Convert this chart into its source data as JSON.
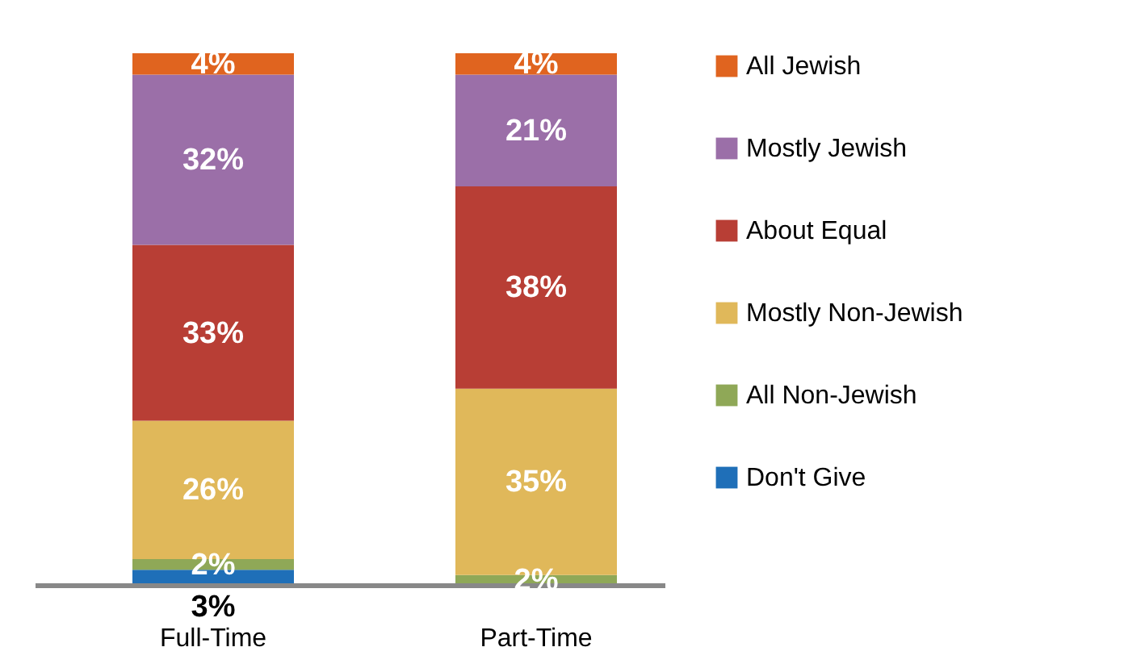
{
  "chart_data": {
    "type": "bar",
    "stacked": true,
    "categories": [
      "Full-Time",
      "Part-Time"
    ],
    "legend": "right",
    "grid": false,
    "data_labels": true,
    "series": [
      {
        "name": "Don't Give",
        "color": "#1f6fb8",
        "values": [
          3,
          0
        ],
        "value_labels": [
          "3%",
          null
        ]
      },
      {
        "name": "All Non-Jewish",
        "color": "#8fa857",
        "values": [
          2,
          2
        ],
        "value_labels": [
          "2%",
          "2%"
        ]
      },
      {
        "name": "Mostly Non-Jewish",
        "color": "#e0b85a",
        "values": [
          26,
          35
        ],
        "value_labels": [
          "26%",
          "35%"
        ]
      },
      {
        "name": "About Equal",
        "color": "#b83e35",
        "values": [
          33,
          38
        ],
        "value_labels": [
          "33%",
          "38%"
        ]
      },
      {
        "name": "Mostly Jewish",
        "color": "#9b6fa8",
        "values": [
          32,
          21
        ],
        "value_labels": [
          "32%",
          "21%"
        ]
      },
      {
        "name": "All Jewish",
        "color": "#e0641f",
        "values": [
          4,
          4
        ],
        "value_labels": [
          "4%",
          "4%"
        ]
      }
    ]
  }
}
